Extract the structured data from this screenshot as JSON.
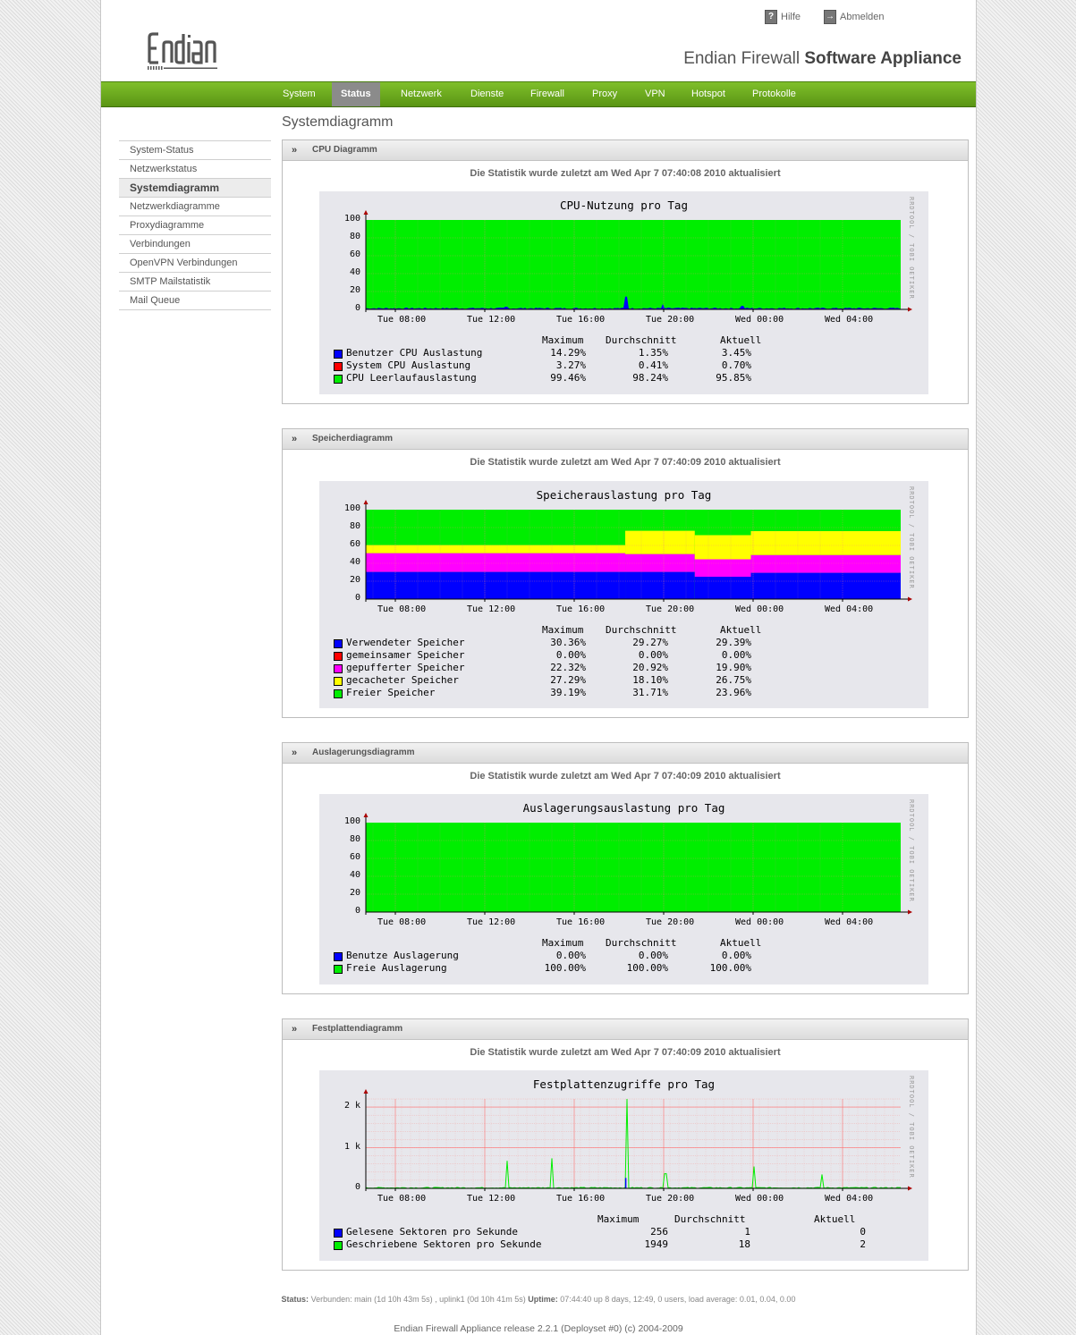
{
  "header": {
    "logo_text": "endian",
    "help_label": "Hilfe",
    "logout_label": "Abmelden",
    "app_title_light": "Endian Firewall",
    "app_title_bold": "Software Appliance"
  },
  "nav": [
    {
      "label": "System",
      "active": false
    },
    {
      "label": "Status",
      "active": true
    },
    {
      "label": "Netzwerk",
      "active": false
    },
    {
      "label": "Dienste",
      "active": false
    },
    {
      "label": "Firewall",
      "active": false
    },
    {
      "label": "Proxy",
      "active": false
    },
    {
      "label": "VPN",
      "active": false
    },
    {
      "label": "Hotspot",
      "active": false
    },
    {
      "label": "Protokolle",
      "active": false
    }
  ],
  "sidebar": [
    {
      "label": "System-Status",
      "active": false
    },
    {
      "label": "Netzwerkstatus",
      "active": false
    },
    {
      "label": "Systemdiagramm",
      "active": true
    },
    {
      "label": "Netzwerkdiagramme",
      "active": false
    },
    {
      "label": "Proxydiagramme",
      "active": false
    },
    {
      "label": "Verbindungen",
      "active": false
    },
    {
      "label": "OpenVPN Verbindungen",
      "active": false
    },
    {
      "label": "SMTP Mailstatistik",
      "active": false
    },
    {
      "label": "Mail Queue",
      "active": false
    }
  ],
  "page_title": "Systemdiagramm",
  "legend_headers": {
    "max": "Maximum",
    "avg": "Durchschnitt",
    "cur": "Aktuell"
  },
  "x_labels": [
    "Tue 08:00",
    "Tue 12:00",
    "Tue 16:00",
    "Tue 20:00",
    "Wed 00:00",
    "Wed 04:00"
  ],
  "rrd_credit": "RRDTOOL / TOBI OETIKER",
  "colors": {
    "green": "#00ee00",
    "blue": "#0000ff",
    "red": "#ff0000",
    "magenta": "#ff00ff",
    "yellow": "#ffff00"
  },
  "panels": [
    {
      "key": "cpu",
      "title": "CPU Diagramm",
      "updated": "Die Statistik wurde zuletzt am Wed Apr 7 07:40:08 2010 aktualisiert",
      "chart_data": {
        "type": "area",
        "title": "CPU-Nutzung pro Tag",
        "ylim": [
          0,
          100
        ],
        "y_ticks": [
          "100",
          "80",
          "60",
          "40",
          "20",
          "0"
        ],
        "x": [
          "Tue 08:00",
          "Tue 12:00",
          "Tue 16:00",
          "Tue 20:00",
          "Wed 00:00",
          "Wed 04:00"
        ],
        "series": [
          {
            "name": "Benutzer CPU Auslastung",
            "color": "#0000ff",
            "max": "14.29%",
            "avg": "1.35%",
            "cur": "3.45%"
          },
          {
            "name": "System CPU Auslastung",
            "color": "#ff0000",
            "max": "3.27%",
            "avg": "0.41%",
            "cur": "0.70%"
          },
          {
            "name": "CPU Leerlaufauslastung",
            "color": "#00ee00",
            "max": "99.46%",
            "avg": "98.24%",
            "cur": "95.85%"
          }
        ]
      }
    },
    {
      "key": "mem",
      "title": "Speicherdiagramm",
      "updated": "Die Statistik wurde zuletzt am Wed Apr 7 07:40:09 2010 aktualisiert",
      "chart_data": {
        "type": "area",
        "title": "Speicherauslastung pro Tag",
        "ylim": [
          0,
          100
        ],
        "y_ticks": [
          "100",
          "80",
          "60",
          "40",
          "20",
          "0"
        ],
        "x": [
          "Tue 08:00",
          "Tue 12:00",
          "Tue 16:00",
          "Tue 20:00",
          "Wed 00:00",
          "Wed 04:00"
        ],
        "series": [
          {
            "name": "Verwendeter Speicher",
            "color": "#0000ff",
            "max": "30.36%",
            "avg": "29.27%",
            "cur": "29.39%"
          },
          {
            "name": "gemeinsamer Speicher",
            "color": "#ff0000",
            "max": "0.00%",
            "avg": "0.00%",
            "cur": "0.00%"
          },
          {
            "name": "gepufferter Speicher",
            "color": "#ff00ff",
            "max": "22.32%",
            "avg": "20.92%",
            "cur": "19.90%"
          },
          {
            "name": "gecacheter Speicher",
            "color": "#ffff00",
            "max": "27.29%",
            "avg": "18.10%",
            "cur": "26.75%"
          },
          {
            "name": "Freier Speicher",
            "color": "#00ee00",
            "max": "39.19%",
            "avg": "31.71%",
            "cur": "23.96%"
          }
        ]
      }
    },
    {
      "key": "swap",
      "title": "Auslagerungsdiagramm",
      "updated": "Die Statistik wurde zuletzt am Wed Apr 7 07:40:09 2010 aktualisiert",
      "chart_data": {
        "type": "area",
        "title": "Auslagerungsauslastung pro Tag",
        "ylim": [
          0,
          100
        ],
        "y_ticks": [
          "100",
          "80",
          "60",
          "40",
          "20",
          "0"
        ],
        "x": [
          "Tue 08:00",
          "Tue 12:00",
          "Tue 16:00",
          "Tue 20:00",
          "Wed 00:00",
          "Wed 04:00"
        ],
        "series": [
          {
            "name": "Benutze Auslagerung",
            "color": "#0000ff",
            "max": "0.00%",
            "avg": "0.00%",
            "cur": "0.00%"
          },
          {
            "name": "Freie Auslagerung",
            "color": "#00ee00",
            "max": "100.00%",
            "avg": "100.00%",
            "cur": "100.00%"
          }
        ]
      }
    },
    {
      "key": "disk",
      "title": "Festplattendiagramm",
      "updated": "Die Statistik wurde zuletzt am Wed Apr 7 07:40:09 2010 aktualisiert",
      "chart_data": {
        "type": "line",
        "title": "Festplattenzugriffe pro Tag",
        "ylim": [
          0,
          2200
        ],
        "y_ticks": [
          "2 k",
          "1 k",
          "0"
        ],
        "x": [
          "Tue 08:00",
          "Tue 12:00",
          "Tue 16:00",
          "Tue 20:00",
          "Wed 00:00",
          "Wed 04:00"
        ],
        "series": [
          {
            "name": "Gelesene Sektoren pro Sekunde",
            "color": "#0000ff",
            "max": "256",
            "avg": "1",
            "cur": "0"
          },
          {
            "name": "Geschriebene Sektoren pro Sekunde",
            "color": "#00ee00",
            "max": "1949",
            "avg": "18",
            "cur": "2"
          }
        ]
      }
    }
  ],
  "statusbar": {
    "status_label": "Status:",
    "status_text": "Verbunden: main (1d 10h 43m 5s) , uplink1 (0d 10h 41m 5s)",
    "uptime_label": "Uptime:",
    "uptime_text": "07:44:40 up 8 days, 12:49, 0 users, load average: 0.01, 0.04, 0.00"
  },
  "footer": "Endian Firewall Appliance release 2.2.1 (Deployset #0) (c) 2004-2009"
}
